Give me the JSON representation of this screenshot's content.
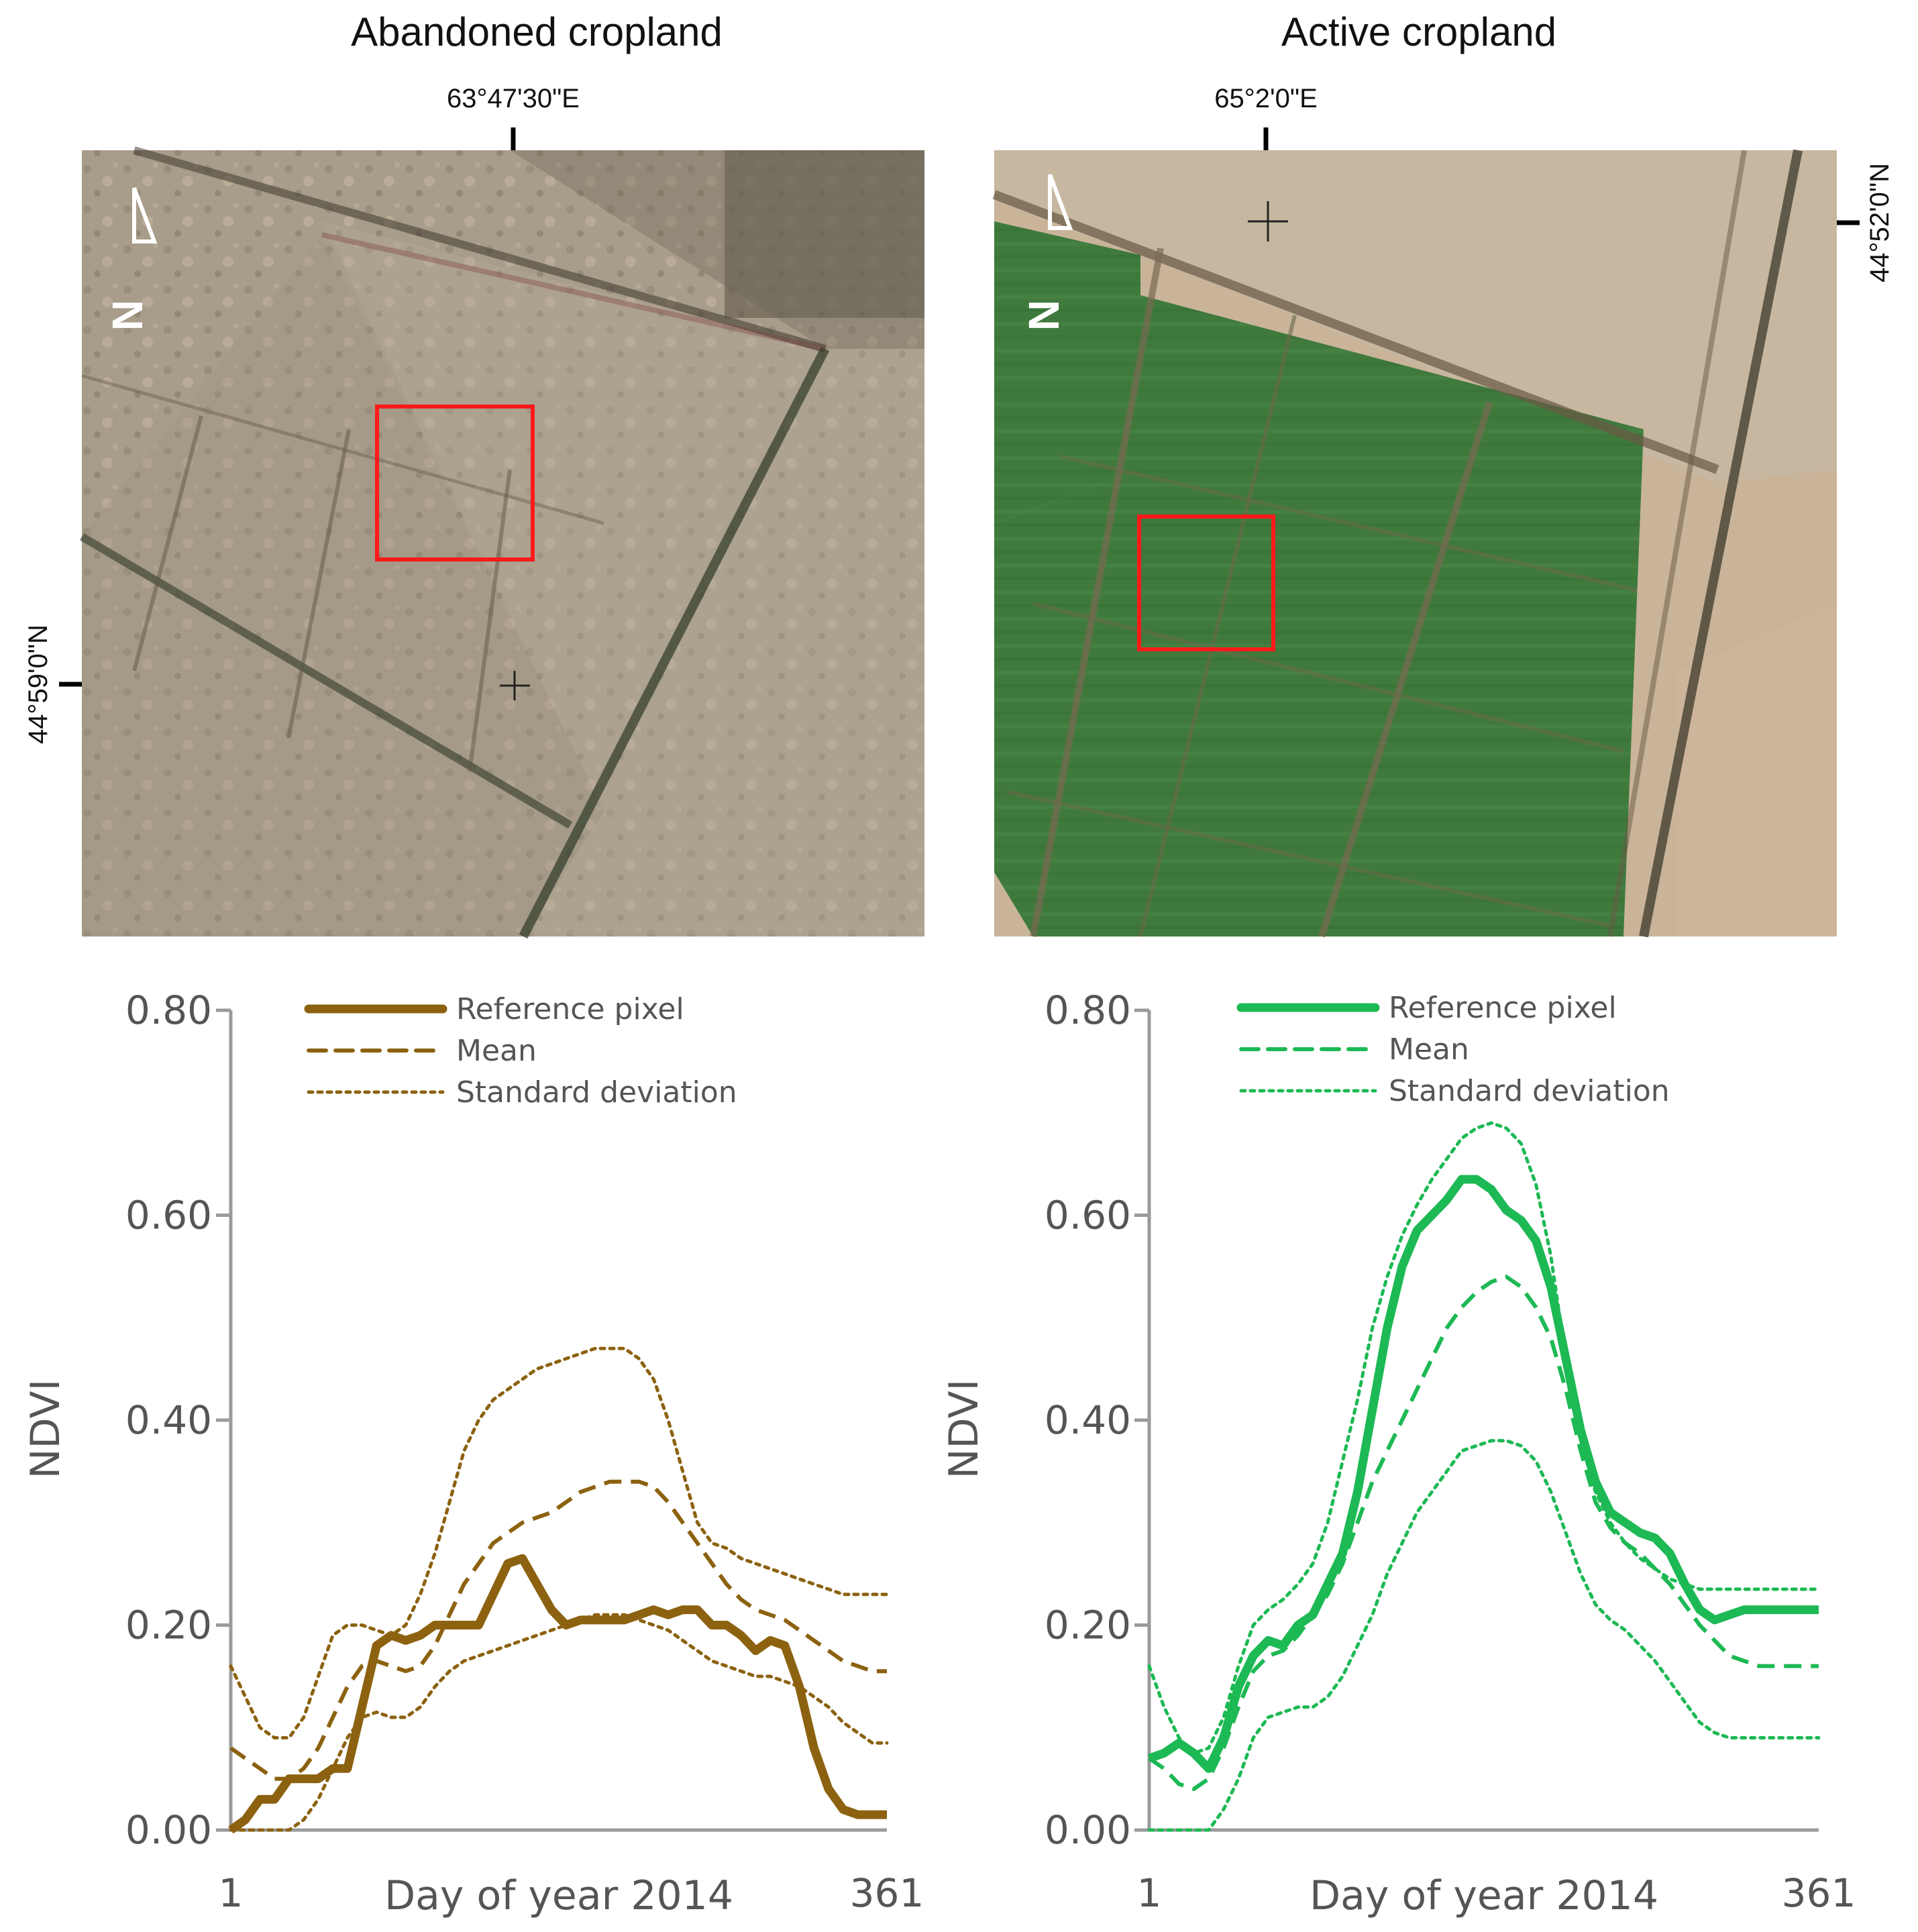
{
  "panels": [
    {
      "title": "Abandoned cropland",
      "lon_label": "63°47'30\"E",
      "lat_label": "44°59'0\"N",
      "north_label": "N"
    },
    {
      "title": "Active cropland",
      "lon_label": "65°2'0\"E",
      "lat_label": "44°52'0\"N",
      "north_label": "N"
    }
  ],
  "colors": {
    "abandoned": "#8c6210",
    "active": "#1db954",
    "box": "#ff1a1a",
    "axis": "#9a9a9a"
  },
  "chart_data": [
    {
      "type": "line",
      "title": "Abandoned cropland",
      "xlabel": "Day of year 2014",
      "ylabel": "NDVI",
      "xlim": [
        1,
        361
      ],
      "ylim": [
        0,
        0.8
      ],
      "yticks": [
        "0.00",
        "0.20",
        "0.40",
        "0.60",
        "0.80"
      ],
      "xticks": [
        "1",
        "361"
      ],
      "legend_position": "top",
      "series": [
        {
          "name": "Reference pixel",
          "style": "solid",
          "x": [
            1,
            9,
            17,
            25,
            33,
            41,
            49,
            57,
            65,
            73,
            81,
            89,
            97,
            105,
            113,
            121,
            129,
            137,
            145,
            153,
            161,
            169,
            177,
            185,
            193,
            201,
            209,
            217,
            225,
            233,
            241,
            249,
            257,
            265,
            273,
            281,
            289,
            297,
            305,
            313,
            321,
            329,
            337,
            345,
            353,
            361
          ],
          "y": [
            0.0,
            0.01,
            0.03,
            0.03,
            0.05,
            0.05,
            0.05,
            0.06,
            0.06,
            0.12,
            0.18,
            0.19,
            0.185,
            0.19,
            0.2,
            0.2,
            0.2,
            0.2,
            0.23,
            0.26,
            0.265,
            0.24,
            0.215,
            0.2,
            0.205,
            0.205,
            0.205,
            0.205,
            0.21,
            0.215,
            0.21,
            0.215,
            0.215,
            0.2,
            0.2,
            0.19,
            0.175,
            0.185,
            0.18,
            0.14,
            0.08,
            0.04,
            0.02,
            0.015,
            0.015,
            0.015
          ]
        },
        {
          "name": "Mean",
          "style": "dashed",
          "x": [
            1,
            9,
            17,
            25,
            33,
            41,
            49,
            57,
            65,
            73,
            81,
            89,
            97,
            105,
            113,
            121,
            129,
            137,
            145,
            153,
            161,
            169,
            177,
            185,
            193,
            201,
            209,
            217,
            225,
            233,
            241,
            249,
            257,
            265,
            273,
            281,
            289,
            297,
            305,
            313,
            321,
            329,
            337,
            345,
            353,
            361
          ],
          "y": [
            0.08,
            0.07,
            0.06,
            0.05,
            0.05,
            0.06,
            0.08,
            0.11,
            0.14,
            0.16,
            0.165,
            0.16,
            0.155,
            0.16,
            0.18,
            0.21,
            0.24,
            0.26,
            0.28,
            0.29,
            0.3,
            0.305,
            0.31,
            0.32,
            0.33,
            0.335,
            0.34,
            0.34,
            0.34,
            0.335,
            0.32,
            0.3,
            0.28,
            0.26,
            0.24,
            0.225,
            0.215,
            0.21,
            0.205,
            0.195,
            0.185,
            0.175,
            0.165,
            0.16,
            0.155,
            0.155
          ]
        },
        {
          "name": "Standard deviation",
          "style": "dotted",
          "x": [
            1,
            9,
            17,
            25,
            33,
            41,
            49,
            57,
            65,
            73,
            81,
            89,
            97,
            105,
            113,
            121,
            129,
            137,
            145,
            153,
            161,
            169,
            177,
            185,
            193,
            201,
            209,
            217,
            225,
            233,
            241,
            249,
            257,
            265,
            273,
            281,
            289,
            297,
            305,
            313,
            321,
            329,
            337,
            345,
            353,
            361
          ],
          "y": [
            0.16,
            0.13,
            0.1,
            0.09,
            0.09,
            0.11,
            0.15,
            0.19,
            0.2,
            0.2,
            0.195,
            0.19,
            0.2,
            0.23,
            0.27,
            0.32,
            0.37,
            0.4,
            0.42,
            0.43,
            0.44,
            0.45,
            0.455,
            0.46,
            0.465,
            0.47,
            0.47,
            0.47,
            0.46,
            0.44,
            0.4,
            0.35,
            0.3,
            0.28,
            0.275,
            0.265,
            0.26,
            0.255,
            0.25,
            0.245,
            0.24,
            0.235,
            0.23,
            0.23,
            0.23,
            0.23
          ]
        },
        {
          "name": "Standard deviation (lower)",
          "style": "dotted",
          "legend": false,
          "x": [
            1,
            9,
            17,
            25,
            33,
            41,
            49,
            57,
            65,
            73,
            81,
            89,
            97,
            105,
            113,
            121,
            129,
            137,
            145,
            153,
            161,
            169,
            177,
            185,
            193,
            201,
            209,
            217,
            225,
            233,
            241,
            249,
            257,
            265,
            273,
            281,
            289,
            297,
            305,
            313,
            321,
            329,
            337,
            345,
            353,
            361
          ],
          "y": [
            0.0,
            0.0,
            0.0,
            0.0,
            0.0,
            0.01,
            0.03,
            0.06,
            0.09,
            0.11,
            0.115,
            0.11,
            0.11,
            0.12,
            0.14,
            0.155,
            0.165,
            0.17,
            0.175,
            0.18,
            0.185,
            0.19,
            0.195,
            0.2,
            0.205,
            0.21,
            0.21,
            0.21,
            0.205,
            0.2,
            0.195,
            0.185,
            0.175,
            0.165,
            0.16,
            0.155,
            0.15,
            0.15,
            0.145,
            0.14,
            0.13,
            0.12,
            0.105,
            0.095,
            0.085,
            0.085
          ]
        }
      ]
    },
    {
      "type": "line",
      "title": "Active cropland",
      "xlabel": "Day of year 2014",
      "ylabel": "NDVI",
      "xlim": [
        1,
        361
      ],
      "ylim": [
        0,
        0.8
      ],
      "yticks": [
        "0.00",
        "0.20",
        "0.40",
        "0.60",
        "0.80"
      ],
      "xticks": [
        "1",
        "361"
      ],
      "legend_position": "top",
      "series": [
        {
          "name": "Reference pixel",
          "style": "solid",
          "x": [
            1,
            9,
            17,
            25,
            33,
            41,
            49,
            57,
            65,
            73,
            81,
            89,
            97,
            105,
            113,
            121,
            129,
            137,
            145,
            153,
            161,
            169,
            177,
            185,
            193,
            201,
            209,
            217,
            225,
            233,
            241,
            249,
            257,
            265,
            273,
            281,
            289,
            297,
            305,
            313,
            321,
            329,
            337,
            345,
            353,
            361
          ],
          "y": [
            0.07,
            0.075,
            0.085,
            0.075,
            0.06,
            0.09,
            0.14,
            0.17,
            0.185,
            0.18,
            0.2,
            0.21,
            0.24,
            0.27,
            0.33,
            0.41,
            0.49,
            0.55,
            0.585,
            0.6,
            0.615,
            0.635,
            0.635,
            0.625,
            0.605,
            0.595,
            0.575,
            0.53,
            0.46,
            0.39,
            0.34,
            0.31,
            0.3,
            0.29,
            0.285,
            0.27,
            0.24,
            0.215,
            0.205,
            0.21,
            0.215,
            0.215,
            0.215,
            0.215,
            0.215,
            0.215
          ]
        },
        {
          "name": "Mean",
          "style": "dashed",
          "x": [
            1,
            9,
            17,
            25,
            33,
            41,
            49,
            57,
            65,
            73,
            81,
            89,
            97,
            105,
            113,
            121,
            129,
            137,
            145,
            153,
            161,
            169,
            177,
            185,
            193,
            201,
            209,
            217,
            225,
            233,
            241,
            249,
            257,
            265,
            273,
            281,
            289,
            297,
            305,
            313,
            321,
            329,
            337,
            345,
            353,
            361
          ],
          "y": [
            0.07,
            0.06,
            0.045,
            0.04,
            0.05,
            0.08,
            0.12,
            0.155,
            0.17,
            0.175,
            0.19,
            0.21,
            0.23,
            0.26,
            0.3,
            0.34,
            0.37,
            0.4,
            0.43,
            0.46,
            0.49,
            0.51,
            0.525,
            0.535,
            0.54,
            0.53,
            0.51,
            0.48,
            0.43,
            0.37,
            0.32,
            0.295,
            0.28,
            0.27,
            0.255,
            0.24,
            0.22,
            0.2,
            0.185,
            0.17,
            0.165,
            0.16,
            0.16,
            0.16,
            0.16,
            0.16
          ]
        },
        {
          "name": "Standard deviation",
          "style": "dotted",
          "x": [
            1,
            9,
            17,
            25,
            33,
            41,
            49,
            57,
            65,
            73,
            81,
            89,
            97,
            105,
            113,
            121,
            129,
            137,
            145,
            153,
            161,
            169,
            177,
            185,
            193,
            201,
            209,
            217,
            225,
            233,
            241,
            249,
            257,
            265,
            273,
            281,
            289,
            297,
            305,
            313,
            321,
            329,
            337,
            345,
            353,
            361
          ],
          "y": [
            0.16,
            0.12,
            0.09,
            0.075,
            0.08,
            0.11,
            0.16,
            0.2,
            0.215,
            0.225,
            0.24,
            0.26,
            0.3,
            0.36,
            0.42,
            0.49,
            0.54,
            0.58,
            0.61,
            0.635,
            0.655,
            0.675,
            0.685,
            0.69,
            0.685,
            0.67,
            0.63,
            0.56,
            0.46,
            0.38,
            0.33,
            0.3,
            0.28,
            0.265,
            0.255,
            0.245,
            0.24,
            0.235,
            0.235,
            0.235,
            0.235,
            0.235,
            0.235,
            0.235,
            0.235,
            0.235
          ]
        },
        {
          "name": "Standard deviation (lower)",
          "style": "dotted",
          "legend": false,
          "x": [
            1,
            9,
            17,
            25,
            33,
            41,
            49,
            57,
            65,
            73,
            81,
            89,
            97,
            105,
            113,
            121,
            129,
            137,
            145,
            153,
            161,
            169,
            177,
            185,
            193,
            201,
            209,
            217,
            225,
            233,
            241,
            249,
            257,
            265,
            273,
            281,
            289,
            297,
            305,
            313,
            321,
            329,
            337,
            345,
            353,
            361
          ],
          "y": [
            0.0,
            0.0,
            0.0,
            0.0,
            0.0,
            0.02,
            0.05,
            0.09,
            0.11,
            0.115,
            0.12,
            0.12,
            0.13,
            0.15,
            0.18,
            0.21,
            0.25,
            0.28,
            0.31,
            0.33,
            0.35,
            0.37,
            0.375,
            0.38,
            0.38,
            0.375,
            0.36,
            0.33,
            0.29,
            0.25,
            0.22,
            0.205,
            0.195,
            0.18,
            0.165,
            0.145,
            0.125,
            0.105,
            0.095,
            0.09,
            0.09,
            0.09,
            0.09,
            0.09,
            0.09,
            0.09
          ]
        }
      ]
    }
  ]
}
